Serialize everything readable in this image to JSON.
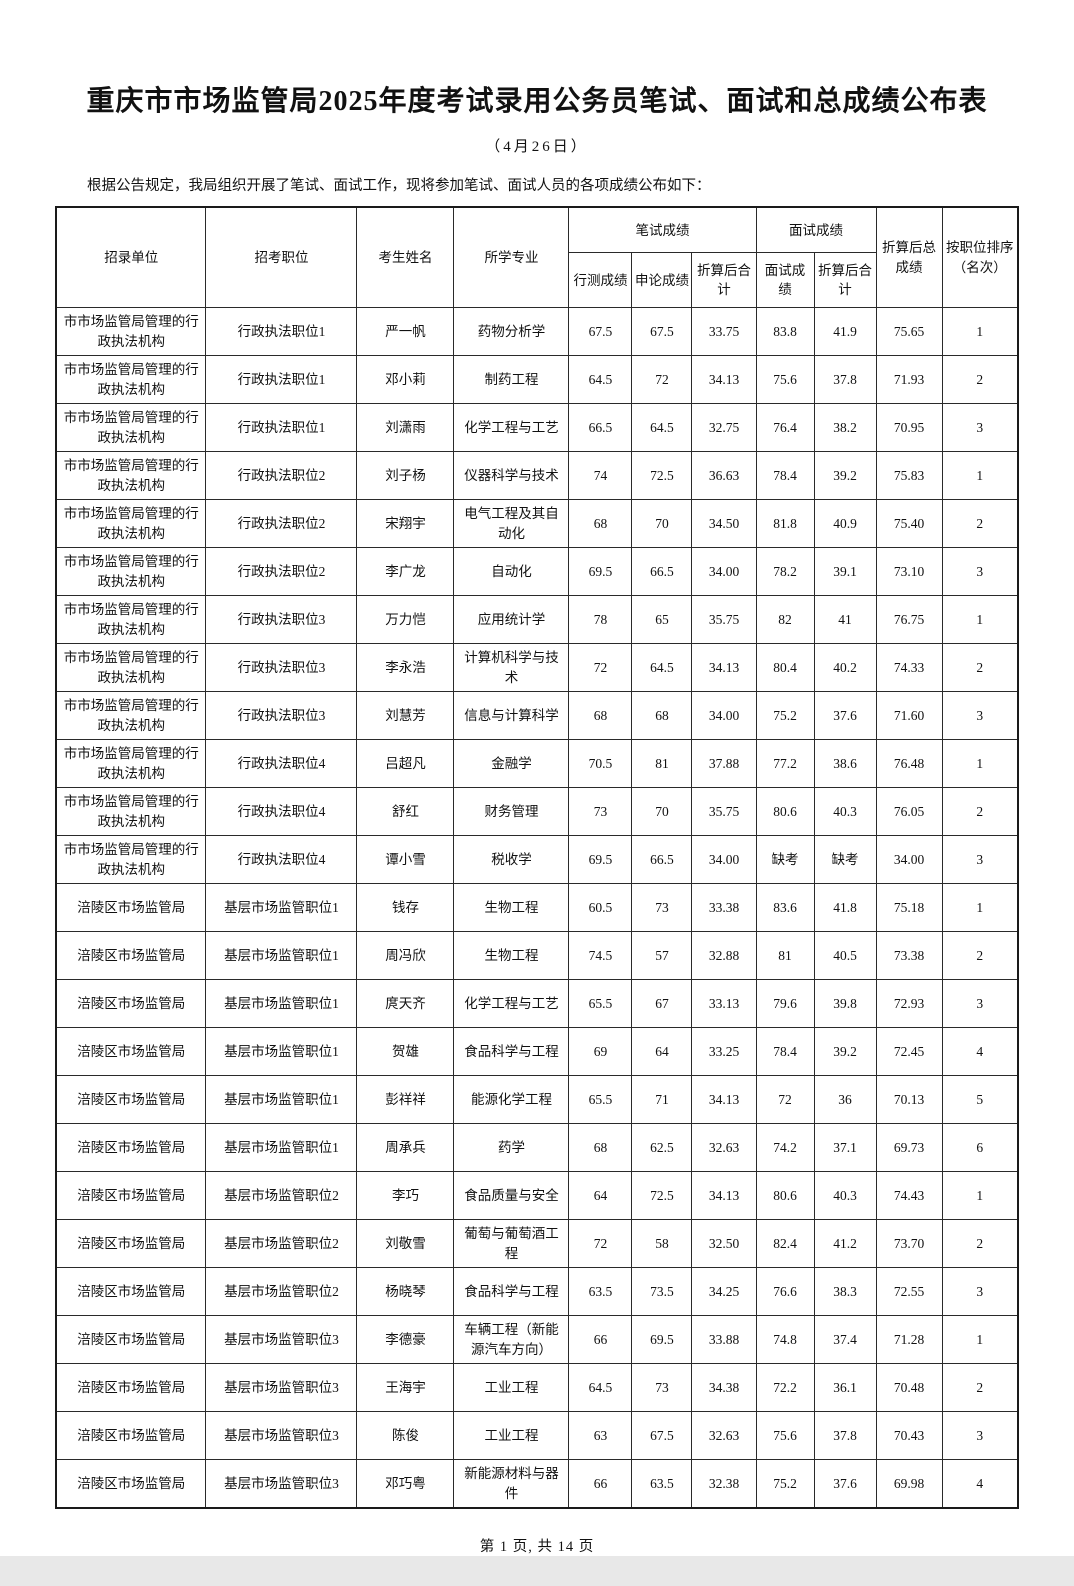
{
  "page": {
    "title": "重庆市市场监管局2025年度考试录用公务员笔试、面试和总成绩公布表",
    "subtitle": "（4月26日）",
    "intro": "根据公告规定，我局组织开展了笔试、面试工作，现将参加笔试、面试人员的各项成绩公布如下：",
    "footer": "第 1 页, 共 14 页"
  },
  "table": {
    "headers": {
      "unit": "招录单位",
      "position": "招考职位",
      "candidate_name": "考生姓名",
      "major": "所学专业",
      "written_group": "笔试成绩",
      "interview_group": "面试成绩",
      "xingce": "行测成绩",
      "shenlun": "申论成绩",
      "written_converted_total": "折算后合计",
      "interview_score": "面试成绩",
      "interview_converted_total": "折算后合计",
      "final_converted_total": "折算后总成绩",
      "rank_by_position": "按职位排序（名次）"
    },
    "rows": [
      [
        "市市场监管局管理的行政执法机构",
        "行政执法职位1",
        "严一帆",
        "药物分析学",
        "67.5",
        "67.5",
        "33.75",
        "83.8",
        "41.9",
        "75.65",
        "1"
      ],
      [
        "市市场监管局管理的行政执法机构",
        "行政执法职位1",
        "邓小莉",
        "制药工程",
        "64.5",
        "72",
        "34.13",
        "75.6",
        "37.8",
        "71.93",
        "2"
      ],
      [
        "市市场监管局管理的行政执法机构",
        "行政执法职位1",
        "刘潇雨",
        "化学工程与工艺",
        "66.5",
        "64.5",
        "32.75",
        "76.4",
        "38.2",
        "70.95",
        "3"
      ],
      [
        "市市场监管局管理的行政执法机构",
        "行政执法职位2",
        "刘子杨",
        "仪器科学与技术",
        "74",
        "72.5",
        "36.63",
        "78.4",
        "39.2",
        "75.83",
        "1"
      ],
      [
        "市市场监管局管理的行政执法机构",
        "行政执法职位2",
        "宋翔宇",
        "电气工程及其自动化",
        "68",
        "70",
        "34.50",
        "81.8",
        "40.9",
        "75.40",
        "2"
      ],
      [
        "市市场监管局管理的行政执法机构",
        "行政执法职位2",
        "李广龙",
        "自动化",
        "69.5",
        "66.5",
        "34.00",
        "78.2",
        "39.1",
        "73.10",
        "3"
      ],
      [
        "市市场监管局管理的行政执法机构",
        "行政执法职位3",
        "万力恺",
        "应用统计学",
        "78",
        "65",
        "35.75",
        "82",
        "41",
        "76.75",
        "1"
      ],
      [
        "市市场监管局管理的行政执法机构",
        "行政执法职位3",
        "李永浩",
        "计算机科学与技术",
        "72",
        "64.5",
        "34.13",
        "80.4",
        "40.2",
        "74.33",
        "2"
      ],
      [
        "市市场监管局管理的行政执法机构",
        "行政执法职位3",
        "刘慧芳",
        "信息与计算科学",
        "68",
        "68",
        "34.00",
        "75.2",
        "37.6",
        "71.60",
        "3"
      ],
      [
        "市市场监管局管理的行政执法机构",
        "行政执法职位4",
        "吕超凡",
        "金融学",
        "70.5",
        "81",
        "37.88",
        "77.2",
        "38.6",
        "76.48",
        "1"
      ],
      [
        "市市场监管局管理的行政执法机构",
        "行政执法职位4",
        "舒红",
        "财务管理",
        "73",
        "70",
        "35.75",
        "80.6",
        "40.3",
        "76.05",
        "2"
      ],
      [
        "市市场监管局管理的行政执法机构",
        "行政执法职位4",
        "谭小雪",
        "税收学",
        "69.5",
        "66.5",
        "34.00",
        "缺考",
        "缺考",
        "34.00",
        "3"
      ],
      [
        "涪陵区市场监管局",
        "基层市场监管职位1",
        "钱存",
        "生物工程",
        "60.5",
        "73",
        "33.38",
        "83.6",
        "41.8",
        "75.18",
        "1"
      ],
      [
        "涪陵区市场监管局",
        "基层市场监管职位1",
        "周冯欣",
        "生物工程",
        "74.5",
        "57",
        "32.88",
        "81",
        "40.5",
        "73.38",
        "2"
      ],
      [
        "涪陵区市场监管局",
        "基层市场监管职位1",
        "庹天齐",
        "化学工程与工艺",
        "65.5",
        "67",
        "33.13",
        "79.6",
        "39.8",
        "72.93",
        "3"
      ],
      [
        "涪陵区市场监管局",
        "基层市场监管职位1",
        "贺雄",
        "食品科学与工程",
        "69",
        "64",
        "33.25",
        "78.4",
        "39.2",
        "72.45",
        "4"
      ],
      [
        "涪陵区市场监管局",
        "基层市场监管职位1",
        "彭祥祥",
        "能源化学工程",
        "65.5",
        "71",
        "34.13",
        "72",
        "36",
        "70.13",
        "5"
      ],
      [
        "涪陵区市场监管局",
        "基层市场监管职位1",
        "周承兵",
        "药学",
        "68",
        "62.5",
        "32.63",
        "74.2",
        "37.1",
        "69.73",
        "6"
      ],
      [
        "涪陵区市场监管局",
        "基层市场监管职位2",
        "李巧",
        "食品质量与安全",
        "64",
        "72.5",
        "34.13",
        "80.6",
        "40.3",
        "74.43",
        "1"
      ],
      [
        "涪陵区市场监管局",
        "基层市场监管职位2",
        "刘敬雪",
        "葡萄与葡萄酒工程",
        "72",
        "58",
        "32.50",
        "82.4",
        "41.2",
        "73.70",
        "2"
      ],
      [
        "涪陵区市场监管局",
        "基层市场监管职位2",
        "杨晓琴",
        "食品科学与工程",
        "63.5",
        "73.5",
        "34.25",
        "76.6",
        "38.3",
        "72.55",
        "3"
      ],
      [
        "涪陵区市场监管局",
        "基层市场监管职位3",
        "李德豪",
        "车辆工程（新能源汽车方向）",
        "66",
        "69.5",
        "33.88",
        "74.8",
        "37.4",
        "71.28",
        "1"
      ],
      [
        "涪陵区市场监管局",
        "基层市场监管职位3",
        "王海宇",
        "工业工程",
        "64.5",
        "73",
        "34.38",
        "72.2",
        "36.1",
        "70.48",
        "2"
      ],
      [
        "涪陵区市场监管局",
        "基层市场监管职位3",
        "陈俊",
        "工业工程",
        "63",
        "67.5",
        "32.63",
        "75.6",
        "37.8",
        "70.43",
        "3"
      ],
      [
        "涪陵区市场监管局",
        "基层市场监管职位3",
        "邓巧粤",
        "新能源材料与器件",
        "66",
        "63.5",
        "32.38",
        "75.2",
        "37.6",
        "69.98",
        "4"
      ]
    ]
  }
}
